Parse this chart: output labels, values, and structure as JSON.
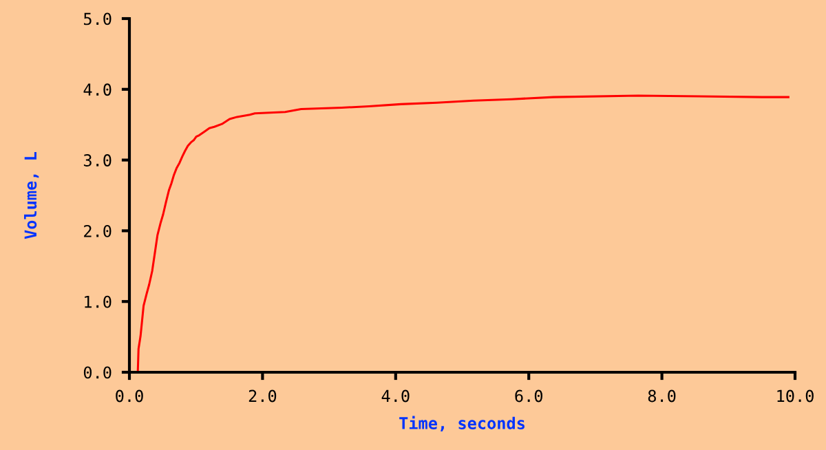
{
  "chart_data": {
    "type": "line",
    "xlabel": "Time, seconds",
    "ylabel": "Volume, L",
    "xlim": [
      0,
      10
    ],
    "ylim": [
      0,
      5
    ],
    "xticks": [
      {
        "value": 0,
        "label": "0.0"
      },
      {
        "value": 2,
        "label": "2.0"
      },
      {
        "value": 4,
        "label": "4.0"
      },
      {
        "value": 6,
        "label": "6.0"
      },
      {
        "value": 8,
        "label": "8.0"
      },
      {
        "value": 10,
        "label": "10.0"
      }
    ],
    "yticks": [
      {
        "value": 0,
        "label": "0.0"
      },
      {
        "value": 1,
        "label": "1.0"
      },
      {
        "value": 2,
        "label": "2.0"
      },
      {
        "value": 3,
        "label": "3.0"
      },
      {
        "value": 4,
        "label": "4.0"
      },
      {
        "value": 5,
        "label": "5.0"
      }
    ],
    "grid": false,
    "legend": false,
    "marker": "none",
    "line_style": "solid",
    "series": [
      {
        "color": "#ff0000",
        "x": [
          0.126,
          0.137,
          0.167,
          0.213,
          0.259,
          0.297,
          0.342,
          0.38,
          0.422,
          0.468,
          0.506,
          0.548,
          0.593,
          0.631,
          0.669,
          0.711,
          0.753,
          0.795,
          0.836,
          0.878,
          0.924,
          0.966,
          1.004,
          1.049,
          1.125,
          1.201,
          1.277,
          1.391,
          1.505,
          1.619,
          1.809,
          1.885,
          2.34,
          2.58,
          3.19,
          3.6,
          4.08,
          4.62,
          5.17,
          5.74,
          6.37,
          7.64,
          9.5,
          9.9
        ],
        "values": [
          0,
          0.33,
          0.51,
          0.94,
          1.11,
          1.24,
          1.43,
          1.67,
          1.94,
          2.11,
          2.23,
          2.4,
          2.57,
          2.67,
          2.79,
          2.89,
          2.96,
          3.05,
          3.13,
          3.2,
          3.25,
          3.28,
          3.33,
          3.35,
          3.4,
          3.45,
          3.47,
          3.51,
          3.58,
          3.61,
          3.64,
          3.66,
          3.68,
          3.72,
          3.74,
          3.76,
          3.79,
          3.81,
          3.84,
          3.86,
          3.89,
          3.91,
          3.89,
          3.89
        ]
      }
    ]
  }
}
